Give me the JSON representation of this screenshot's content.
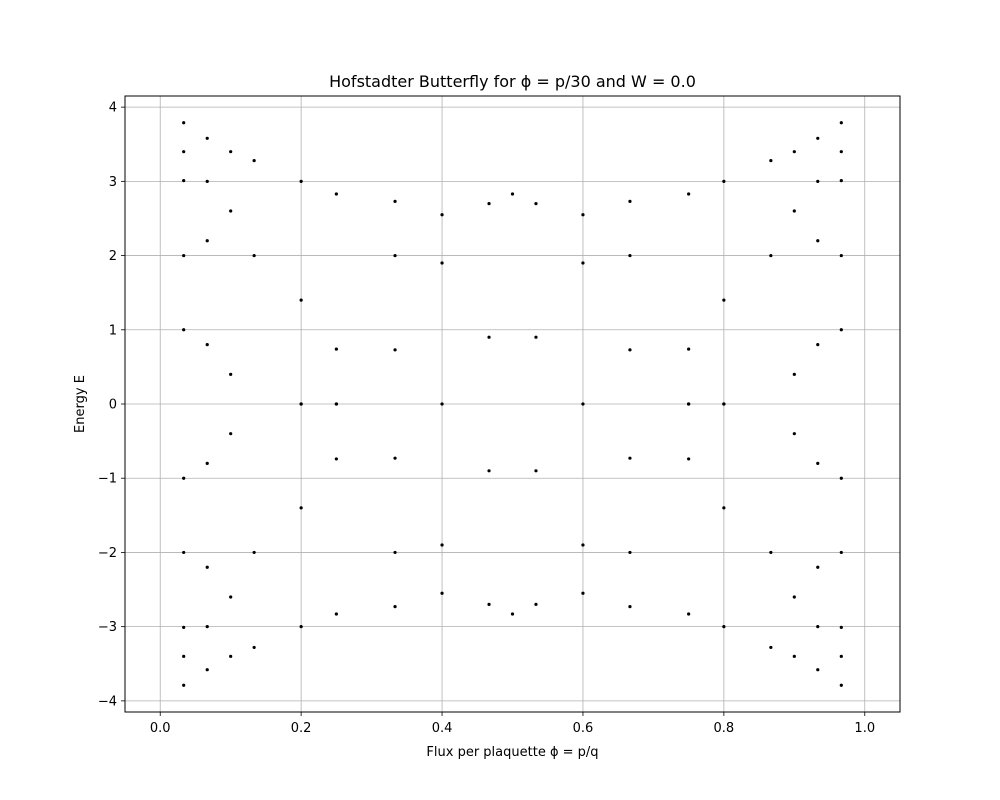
{
  "chart_data": {
    "type": "scatter",
    "title": "Hofstadter Butterfly for ϕ = p/30 and W = 0.0",
    "xlabel": "Flux per plaquette ϕ = p/q",
    "ylabel": "Energy E",
    "xlim": [
      -0.05,
      1.05
    ],
    "ylim": [
      -4.15,
      4.15
    ],
    "xticks": [
      0.0,
      0.2,
      0.4,
      0.6,
      0.8,
      1.0
    ],
    "xtick_labels": [
      "0.0",
      "0.2",
      "0.4",
      "0.6",
      "0.8",
      "1.0"
    ],
    "yticks": [
      -4,
      -3,
      -2,
      -1,
      0,
      1,
      2,
      3,
      4
    ],
    "ytick_labels": [
      "−4",
      "−3",
      "−2",
      "−1",
      "0",
      "1",
      "2",
      "3",
      "4"
    ],
    "grid": true,
    "marker_color": "#000000",
    "series": [
      {
        "x": [
          0.0333,
          0.0333,
          0.0333,
          0.0333,
          0.0333,
          0.0333,
          0.0333,
          0.0333,
          0.0333,
          0.0333,
          0.0667,
          0.0667,
          0.0667,
          0.0667,
          0.0667,
          0.0667,
          0.0667,
          0.0667,
          0.1,
          0.1,
          0.1,
          0.1,
          0.1,
          0.1,
          0.1333,
          0.1333,
          0.1333,
          0.1333,
          0.2,
          0.2,
          0.2,
          0.2,
          0.2,
          0.2,
          0.25,
          0.25,
          0.25,
          0.25,
          0.25,
          0.25,
          0.3333,
          0.3333,
          0.3333,
          0.3333,
          0.3333,
          0.3333,
          0.4,
          0.4,
          0.4,
          0.4,
          0.4,
          0.4667,
          0.4667,
          0.4667,
          0.4667,
          0.5,
          0.5,
          0.5333,
          0.5333,
          0.5333,
          0.5333,
          0.6,
          0.6,
          0.6,
          0.6,
          0.6,
          0.6667,
          0.6667,
          0.6667,
          0.6667,
          0.6667,
          0.6667,
          0.75,
          0.75,
          0.75,
          0.75,
          0.75,
          0.75,
          0.8,
          0.8,
          0.8,
          0.8,
          0.8,
          0.8,
          0.8667,
          0.8667,
          0.8667,
          0.8667,
          0.9,
          0.9,
          0.9,
          0.9,
          0.9,
          0.9,
          0.9333,
          0.9333,
          0.9333,
          0.9333,
          0.9333,
          0.9333,
          0.9333,
          0.9333,
          0.9667,
          0.9667,
          0.9667,
          0.9667,
          0.9667,
          0.9667,
          0.9667,
          0.9667,
          0.9667,
          0.9667
        ],
        "y": [
          3.79,
          3.4,
          3.01,
          2.0,
          1.0,
          -1.0,
          -2.0,
          -3.01,
          -3.4,
          -3.79,
          3.58,
          3.0,
          2.2,
          0.8,
          -0.8,
          -2.2,
          -3.0,
          -3.58,
          3.4,
          2.6,
          0.4,
          -0.4,
          -2.6,
          -3.4,
          3.28,
          2.0,
          -2.0,
          -3.28,
          3.0,
          1.4,
          0.0,
          -0.0,
          -1.4,
          -3.0,
          2.83,
          0.74,
          0.0,
          -0.0,
          -0.74,
          -2.83,
          2.73,
          2.0,
          0.73,
          -0.73,
          -2.0,
          -2.73,
          2.55,
          1.9,
          0.0,
          -1.9,
          -2.55,
          2.7,
          0.9,
          -0.9,
          -2.7,
          2.83,
          -2.83,
          2.7,
          0.9,
          -0.9,
          -2.7,
          2.55,
          1.9,
          0.0,
          -1.9,
          -2.55,
          2.73,
          2.0,
          0.73,
          -0.73,
          -2.0,
          -2.73,
          2.83,
          0.74,
          0.0,
          -0.0,
          -0.74,
          -2.83,
          3.0,
          1.4,
          0.0,
          -0.0,
          -1.4,
          -3.0,
          3.28,
          2.0,
          -2.0,
          -3.28,
          3.4,
          2.6,
          0.4,
          -0.4,
          -2.6,
          -3.4,
          3.58,
          3.0,
          2.2,
          0.8,
          -0.8,
          -2.2,
          -3.0,
          -3.58,
          3.79,
          3.4,
          3.01,
          2.0,
          1.0,
          -1.0,
          -2.0,
          -3.01,
          -3.4,
          -3.79
        ]
      }
    ]
  }
}
